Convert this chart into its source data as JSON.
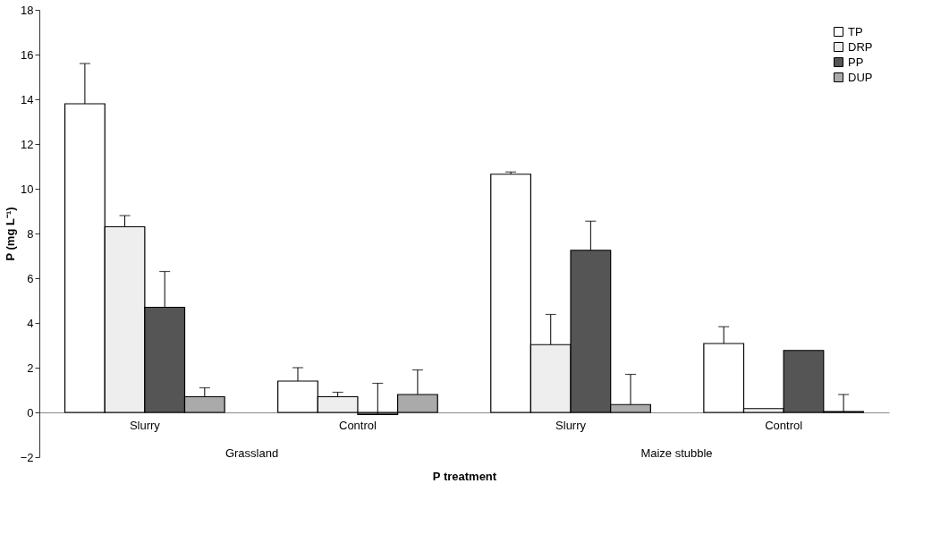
{
  "chart_data": {
    "type": "bar",
    "xlabel": "P treatment",
    "ylabel": "P (mg L⁻¹)",
    "categories": [
      "Slurry",
      "Control",
      "Slurry",
      "Control"
    ],
    "annotations": [
      "Grassland",
      "Maize stubble"
    ],
    "series": [
      {
        "name": "TP",
        "color": "#ffffff",
        "values": [
          13.8,
          1.4,
          10.65,
          3.08
        ],
        "errors": [
          1.8,
          0.6,
          0.1,
          0.75
        ]
      },
      {
        "name": "DRP",
        "color": "#eeeeee",
        "values": [
          8.3,
          0.7,
          3.03,
          0.17
        ],
        "errors": [
          0.5,
          0.2,
          1.35,
          null
        ]
      },
      {
        "name": "PP",
        "color": "#555555",
        "values": [
          4.7,
          -0.1,
          7.25,
          2.77
        ],
        "errors": [
          1.6,
          1.4,
          1.3,
          null
        ]
      },
      {
        "name": "DUP",
        "color": "#aaaaaa",
        "values": [
          0.7,
          0.8,
          0.35,
          0.04
        ],
        "errors": [
          0.4,
          1.1,
          1.35,
          0.76
        ]
      }
    ],
    "ylim": [
      -2,
      18
    ],
    "yticks": [
      -2,
      0,
      2,
      4,
      6,
      8,
      10,
      12,
      14,
      16,
      18
    ],
    "grid": false,
    "legend": "top right"
  }
}
